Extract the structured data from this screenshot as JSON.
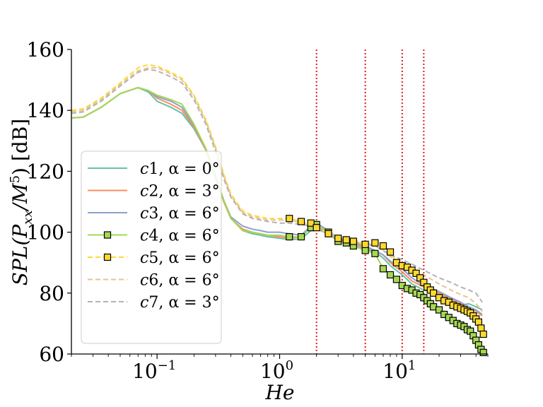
{
  "chart_data": {
    "type": "line",
    "xscale": "log",
    "xlim": [
      0.02,
      50
    ],
    "ylim": [
      60,
      160
    ],
    "xlabel": "He",
    "ylabel": "SPL(P_xx/M^5) [dB]",
    "ylabel_parts": {
      "pre": "SPL(P",
      "sub": "xx",
      "mid": "/M",
      "sup": "5",
      "post": ") [dB]"
    },
    "title": "",
    "grid": false,
    "legend_position": "center-left",
    "yticks": [
      60,
      80,
      100,
      120,
      140,
      160
    ],
    "ytick_labels": [
      "60",
      "80",
      "100",
      "120",
      "140",
      "160"
    ],
    "xticks": [
      0.1,
      1,
      10
    ],
    "xtick_labels": [
      {
        "base": "10",
        "exp": "−1"
      },
      {
        "base": "10",
        "exp": "0"
      },
      {
        "base": "10",
        "exp": "1"
      }
    ],
    "vlines": {
      "x": [
        2,
        5,
        10,
        15
      ],
      "color": "#e31a1c",
      "style": "dotted"
    },
    "series": [
      {
        "name": "c1, α = 0°",
        "label_var": "c1",
        "label_alpha": "α = 0°",
        "color": "#66c2a5",
        "dash": "solid",
        "marker": "none",
        "x": [
          0.02,
          0.025,
          0.035,
          0.05,
          0.07,
          0.085,
          0.1,
          0.13,
          0.16,
          0.2,
          0.25,
          0.3,
          0.35,
          0.4,
          0.5,
          0.6,
          0.7,
          0.8,
          1.0,
          1.2,
          1.5,
          1.8,
          2.0,
          2.5,
          3.0,
          3.5,
          4.0,
          5.0,
          6.0,
          7.0,
          8.0,
          10,
          12,
          15,
          20,
          25,
          30,
          35,
          40,
          45
        ],
        "y": [
          137.5,
          137.8,
          141,
          145.5,
          147.5,
          146,
          143,
          141,
          139,
          134,
          127,
          118,
          110,
          104.5,
          100.5,
          99.5,
          99,
          98.5,
          98,
          97.5,
          97.8,
          100.5,
          101,
          99.5,
          97,
          96.5,
          95.5,
          94.5,
          93.5,
          91.5,
          89,
          86,
          83,
          81,
          79.5,
          77.5,
          76,
          76.5,
          75.5,
          74.5
        ]
      },
      {
        "name": "c2, α = 3°",
        "label_var": "c2",
        "label_alpha": "α = 3°",
        "color": "#fc8d62",
        "dash": "solid",
        "marker": "none",
        "x": [
          0.02,
          0.025,
          0.035,
          0.05,
          0.07,
          0.085,
          0.1,
          0.13,
          0.16,
          0.2,
          0.25,
          0.3,
          0.35,
          0.4,
          0.5,
          0.6,
          0.7,
          0.8,
          1.0,
          1.2,
          1.5,
          1.8,
          2.0,
          2.5,
          3.0,
          3.5,
          4.0,
          5.0,
          6.0,
          7.0,
          8.0,
          10,
          12,
          15,
          20,
          25,
          30,
          35,
          40,
          45
        ],
        "y": [
          137.5,
          137.8,
          141,
          145.5,
          147.5,
          146.5,
          144,
          142,
          140,
          134.5,
          127,
          118.5,
          110,
          104.5,
          101,
          100,
          99.5,
          99,
          98.5,
          98,
          98.5,
          101.5,
          102,
          100,
          97.5,
          97,
          96,
          95,
          94,
          92.5,
          90,
          87,
          84,
          82,
          80,
          78,
          76.5,
          75,
          74,
          72.5
        ]
      },
      {
        "name": "c3, α = 6°",
        "label_var": "c3",
        "label_alpha": "α = 6°",
        "color": "#8da0cb",
        "dash": "solid",
        "marker": "none",
        "x": [
          0.02,
          0.025,
          0.035,
          0.05,
          0.07,
          0.085,
          0.1,
          0.13,
          0.16,
          0.2,
          0.25,
          0.3,
          0.35,
          0.4,
          0.5,
          0.6,
          0.7,
          0.8,
          1.0,
          1.2,
          1.5,
          1.8,
          2.0,
          2.5,
          3.0,
          3.5,
          4.0,
          5.0,
          6.0,
          7.0,
          8.0,
          10,
          12,
          15,
          20,
          25,
          30,
          35,
          40,
          45
        ],
        "y": [
          137.5,
          137.8,
          141,
          145.5,
          147.5,
          146.5,
          144.5,
          143,
          141,
          135,
          127.5,
          118.5,
          110.5,
          105,
          102,
          101,
          100.5,
          100,
          100,
          99.5,
          99,
          102,
          103,
          100.5,
          98,
          97.5,
          96.5,
          95.5,
          94,
          92.5,
          90.5,
          88,
          85,
          82.5,
          80.5,
          78.5,
          77,
          75.5,
          74.5,
          73
        ]
      },
      {
        "name": "c4, α = 6°",
        "label_var": "c4",
        "label_alpha": "α = 6°",
        "color": "#a6d854",
        "dash": "solid",
        "marker": "square",
        "x": [
          0.02,
          0.025,
          0.035,
          0.05,
          0.07,
          0.085,
          0.1,
          0.13,
          0.16,
          0.2,
          0.25,
          0.3,
          0.35,
          0.4,
          0.5,
          0.6,
          0.7,
          0.8,
          1.0,
          1.2,
          1.5,
          1.8,
          2.0,
          2.5,
          3.0,
          3.5,
          4.0,
          5.0,
          6.0,
          7.0,
          8.0,
          9.0,
          10,
          11,
          12,
          13,
          14,
          15,
          16,
          17,
          18,
          20,
          22,
          24,
          26,
          28,
          30,
          32,
          34,
          36,
          38,
          40,
          42,
          44,
          46
        ],
        "y": [
          137.5,
          137.8,
          141,
          145.5,
          147.5,
          146.5,
          145,
          143.5,
          142,
          135.5,
          127.5,
          118.5,
          110.5,
          104.5,
          100.5,
          100,
          99.5,
          99,
          99,
          98.5,
          98.5,
          101.5,
          102.5,
          100,
          97,
          96.5,
          95.5,
          94,
          93,
          88,
          86,
          84.5,
          82.5,
          81.5,
          81,
          80,
          79.5,
          78.5,
          77.5,
          76.5,
          75.5,
          74.5,
          73,
          72,
          71,
          70,
          69.5,
          69,
          68,
          67.5,
          66,
          64.5,
          63,
          61.5,
          60.5
        ]
      },
      {
        "name": "c5, α = 6°",
        "label_var": "c5",
        "label_alpha": "α = 6°",
        "color": "#ffd92f",
        "dash": "dashed",
        "marker": "square",
        "x": [
          0.02,
          0.025,
          0.035,
          0.05,
          0.07,
          0.085,
          0.1,
          0.13,
          0.16,
          0.2,
          0.25,
          0.3,
          0.35,
          0.4,
          0.5,
          0.6,
          0.7,
          0.8,
          1.0,
          1.2,
          1.5,
          1.8,
          2.0,
          2.5,
          3.0,
          3.5,
          4.0,
          5.0,
          6.0,
          7.0,
          8.0,
          9.0,
          10,
          11,
          12,
          13,
          14,
          15,
          16,
          17,
          18,
          20,
          22,
          24,
          26,
          28,
          30,
          32,
          34,
          36,
          38,
          40,
          42,
          44,
          46
        ],
        "y": [
          140,
          140.5,
          144,
          149,
          154,
          155,
          154.5,
          152.5,
          150.5,
          145,
          137,
          128,
          119,
          112.5,
          107,
          105.5,
          105,
          104.5,
          104.5,
          104.5,
          103.5,
          103,
          101.5,
          99.5,
          98,
          97.5,
          97,
          96,
          96.5,
          95.5,
          93.5,
          90,
          89,
          88.5,
          87.5,
          86.5,
          85,
          83.5,
          82,
          81,
          80,
          78.5,
          77.5,
          77,
          76,
          75.5,
          75,
          74.5,
          74,
          73.5,
          72.5,
          71.5,
          70.5,
          68.5,
          66.5
        ]
      },
      {
        "name": "c6, α = 6°",
        "label_var": "c6",
        "label_alpha": "α = 6°",
        "color": "#e5c494",
        "dash": "dashed",
        "marker": "none",
        "x": [
          0.02,
          0.025,
          0.035,
          0.05,
          0.07,
          0.085,
          0.1,
          0.13,
          0.16,
          0.2,
          0.25,
          0.3,
          0.35,
          0.4,
          0.5,
          0.6,
          0.7,
          0.8,
          1.0,
          1.2,
          1.5,
          1.8,
          2.0,
          2.5,
          3.0,
          3.5,
          4.0,
          5.0,
          6.0,
          7.0,
          8.0,
          10,
          12,
          15,
          20,
          25,
          30,
          35,
          40,
          45
        ],
        "y": [
          139.5,
          140,
          143.5,
          148.5,
          153,
          154,
          154,
          152,
          150,
          144.5,
          136.5,
          127.5,
          118.5,
          112,
          106.5,
          105,
          104.5,
          104,
          104,
          104,
          103,
          102.5,
          102,
          100,
          98.5,
          98,
          97.5,
          96.5,
          95.5,
          94,
          92,
          89.5,
          88,
          86,
          83,
          81,
          79.5,
          78.5,
          76.5,
          74
        ]
      },
      {
        "name": "c7, α = 3°",
        "label_var": "c7",
        "label_alpha": "α = 3°",
        "color": "#b3b3b3",
        "dash": "dashed",
        "marker": "none",
        "x": [
          0.02,
          0.025,
          0.035,
          0.05,
          0.07,
          0.085,
          0.1,
          0.13,
          0.16,
          0.2,
          0.25,
          0.3,
          0.35,
          0.4,
          0.5,
          0.6,
          0.7,
          0.8,
          1.0,
          1.2,
          1.5,
          1.8,
          2.0,
          2.5,
          3.0,
          3.5,
          4.0,
          5.0,
          6.0,
          7.0,
          8.0,
          10,
          12,
          15,
          20,
          25,
          30,
          35,
          40,
          45
        ],
        "y": [
          139,
          139.5,
          143,
          148,
          152.5,
          153.5,
          153,
          151,
          149,
          143.5,
          135.5,
          126.5,
          117.5,
          111.5,
          106,
          104.5,
          104,
          103.5,
          103,
          103,
          102.5,
          102,
          101.5,
          99.5,
          98,
          97.5,
          97,
          96,
          95.5,
          94,
          92.5,
          91,
          89.5,
          87.5,
          85,
          83.5,
          82,
          81,
          80,
          77
        ]
      }
    ]
  }
}
